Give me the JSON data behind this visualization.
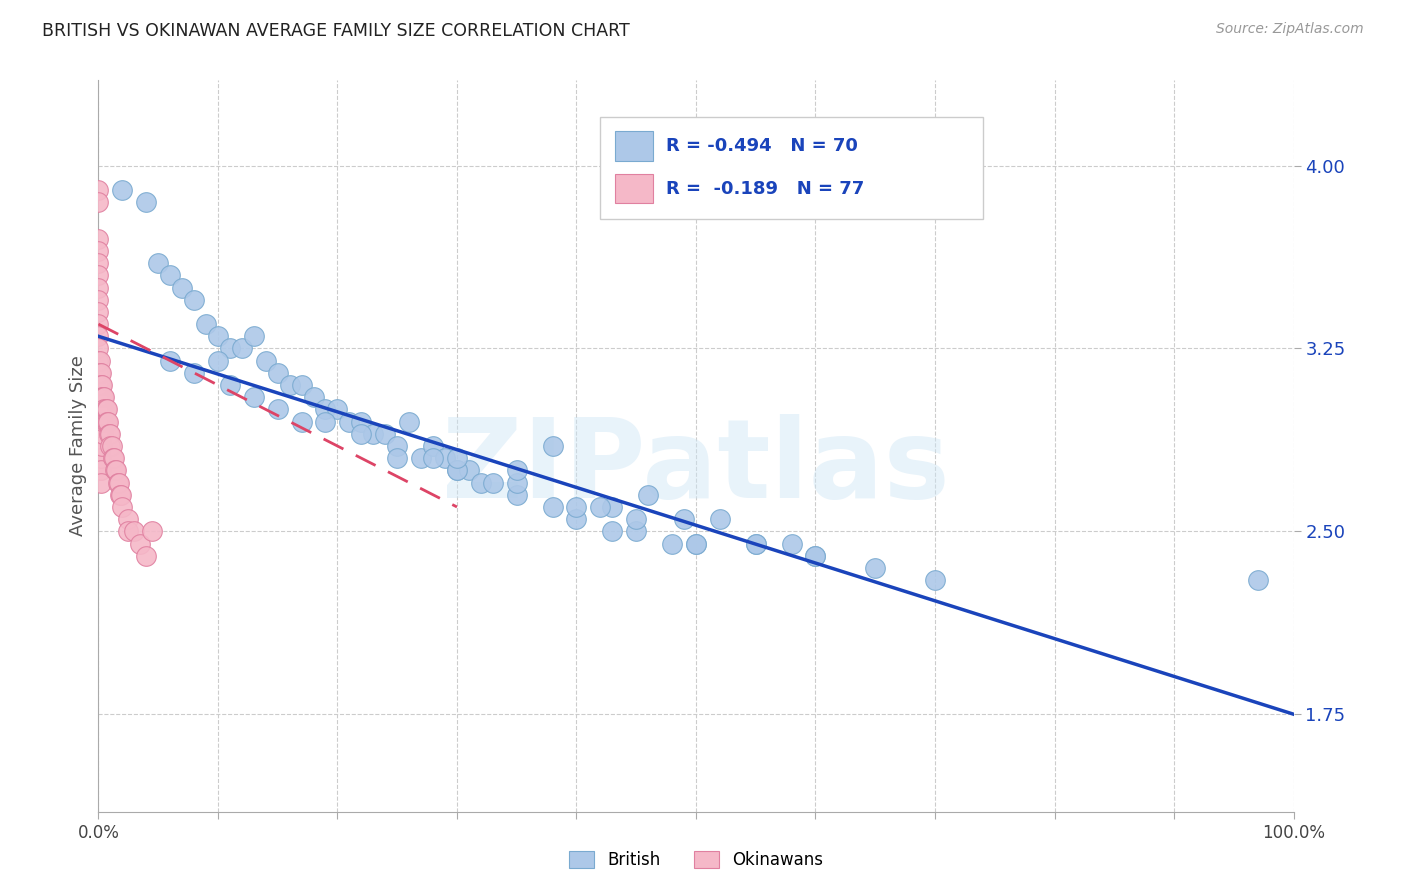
{
  "title": "BRITISH VS OKINAWAN AVERAGE FAMILY SIZE CORRELATION CHART",
  "source": "Source: ZipAtlas.com",
  "ylabel": "Average Family Size",
  "watermark": "ZIPatlas",
  "british_R": -0.494,
  "british_N": 70,
  "okinawan_R": -0.189,
  "okinawan_N": 77,
  "british_color": "#adc8e8",
  "british_edge": "#7aaad0",
  "okinawan_color": "#f5b8c8",
  "okinawan_edge": "#e080a0",
  "trend_british_color": "#1a44bb",
  "trend_okinawan_color": "#dd4466",
  "background_color": "#ffffff",
  "grid_color": "#cccccc",
  "yticks": [
    1.75,
    2.5,
    3.25,
    4.0
  ],
  "xlim": [
    0.0,
    1.0
  ],
  "ylim": [
    1.35,
    4.35
  ],
  "british_x": [
    0.02,
    0.04,
    0.05,
    0.06,
    0.07,
    0.08,
    0.09,
    0.1,
    0.11,
    0.12,
    0.13,
    0.14,
    0.15,
    0.16,
    0.17,
    0.18,
    0.19,
    0.2,
    0.21,
    0.22,
    0.23,
    0.24,
    0.25,
    0.26,
    0.27,
    0.28,
    0.29,
    0.3,
    0.31,
    0.32,
    0.06,
    0.08,
    0.1,
    0.11,
    0.13,
    0.15,
    0.17,
    0.19,
    0.22,
    0.25,
    0.28,
    0.3,
    0.33,
    0.35,
    0.38,
    0.4,
    0.43,
    0.45,
    0.48,
    0.5,
    0.35,
    0.38,
    0.4,
    0.43,
    0.46,
    0.49,
    0.52,
    0.55,
    0.58,
    0.6,
    0.3,
    0.35,
    0.42,
    0.45,
    0.5,
    0.55,
    0.6,
    0.65,
    0.7,
    0.97
  ],
  "british_y": [
    3.9,
    3.85,
    3.6,
    3.55,
    3.5,
    3.45,
    3.35,
    3.3,
    3.25,
    3.25,
    3.3,
    3.2,
    3.15,
    3.1,
    3.1,
    3.05,
    3.0,
    3.0,
    2.95,
    2.95,
    2.9,
    2.9,
    2.85,
    2.95,
    2.8,
    2.85,
    2.8,
    2.75,
    2.75,
    2.7,
    3.2,
    3.15,
    3.2,
    3.1,
    3.05,
    3.0,
    2.95,
    2.95,
    2.9,
    2.8,
    2.8,
    2.75,
    2.7,
    2.65,
    2.6,
    2.55,
    2.5,
    2.5,
    2.45,
    2.45,
    2.7,
    2.85,
    2.6,
    2.6,
    2.65,
    2.55,
    2.55,
    2.45,
    2.45,
    2.4,
    2.8,
    2.75,
    2.6,
    2.55,
    2.45,
    2.45,
    2.4,
    2.35,
    2.3,
    2.3
  ],
  "okinawan_x": [
    0.0,
    0.0,
    0.0,
    0.0,
    0.0,
    0.0,
    0.0,
    0.0,
    0.0,
    0.0,
    0.0,
    0.0,
    0.0,
    0.0,
    0.0,
    0.0,
    0.0,
    0.0,
    0.0,
    0.0,
    0.001,
    0.001,
    0.001,
    0.001,
    0.001,
    0.001,
    0.001,
    0.001,
    0.001,
    0.001,
    0.002,
    0.002,
    0.002,
    0.002,
    0.002,
    0.002,
    0.002,
    0.002,
    0.002,
    0.002,
    0.003,
    0.003,
    0.003,
    0.003,
    0.003,
    0.003,
    0.004,
    0.004,
    0.004,
    0.004,
    0.005,
    0.005,
    0.005,
    0.006,
    0.006,
    0.007,
    0.007,
    0.008,
    0.009,
    0.01,
    0.01,
    0.011,
    0.012,
    0.013,
    0.014,
    0.015,
    0.016,
    0.017,
    0.018,
    0.019,
    0.02,
    0.025,
    0.025,
    0.03,
    0.035,
    0.04,
    0.045
  ],
  "okinawan_y": [
    3.9,
    3.85,
    3.7,
    3.65,
    3.6,
    3.55,
    3.5,
    3.45,
    3.4,
    3.35,
    3.3,
    3.25,
    3.2,
    3.15,
    3.1,
    3.05,
    3.0,
    2.95,
    2.9,
    2.85,
    3.2,
    3.15,
    3.1,
    3.05,
    3.0,
    2.95,
    2.9,
    2.85,
    2.8,
    2.75,
    3.15,
    3.1,
    3.05,
    3.0,
    2.95,
    2.9,
    2.85,
    2.8,
    2.75,
    2.7,
    3.1,
    3.05,
    3.0,
    2.95,
    2.9,
    2.85,
    3.05,
    3.0,
    2.95,
    2.9,
    3.05,
    3.0,
    2.95,
    3.0,
    2.95,
    3.0,
    2.95,
    2.95,
    2.9,
    2.9,
    2.85,
    2.85,
    2.8,
    2.8,
    2.75,
    2.75,
    2.7,
    2.7,
    2.65,
    2.65,
    2.6,
    2.55,
    2.5,
    2.5,
    2.45,
    2.4,
    2.5
  ],
  "trend_british_x0": 0.0,
  "trend_british_y0": 3.3,
  "trend_british_x1": 1.0,
  "trend_british_y1": 1.75,
  "trend_okinawan_x0": 0.0,
  "trend_okinawan_y0": 3.35,
  "trend_okinawan_x1": 0.3,
  "trend_okinawan_y1": 2.6,
  "legend_R1": "R = -0.494",
  "legend_N1": "N = 70",
  "legend_R2": "R =  -0.189",
  "legend_N2": "N = 77",
  "legend_label1": "British",
  "legend_label2": "Okinawans"
}
